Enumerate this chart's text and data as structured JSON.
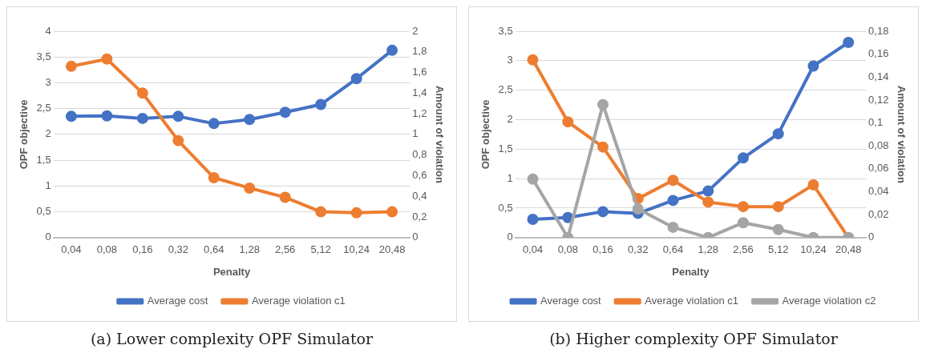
{
  "chart_data": [
    {
      "type": "line",
      "title": "(a) Lower complexity OPF Simulator",
      "xlabel": "Penalty",
      "ylabel": "OPF objective",
      "y2label": "Amount of violation",
      "categories": [
        "0,04",
        "0,08",
        "0,16",
        "0,32",
        "0,64",
        "1,28",
        "2,56",
        "5,12",
        "10,24",
        "20,48"
      ],
      "series": [
        {
          "name": "Average cost",
          "color": "#4472c4",
          "values": [
            2.35,
            2.36,
            2.31,
            2.35,
            2.21,
            2.29,
            2.43,
            2.58,
            3.08,
            3.63
          ]
        },
        {
          "name": "Average violation c1",
          "color": "#ed7d31",
          "axis": "y2",
          "values": [
            1.66,
            1.73,
            1.4,
            0.94,
            0.58,
            0.48,
            0.39,
            0.25,
            0.24,
            0.25
          ]
        }
      ],
      "ylim": [
        0,
        4
      ],
      "yticks": [
        0,
        {
          "value": 0.5,
          "label": "0,5"
        },
        1,
        {
          "value": 1.5,
          "label": "1,5"
        },
        2,
        {
          "value": 2.5,
          "label": "2,5"
        },
        3,
        {
          "value": 3.5,
          "label": "3,5"
        },
        4
      ],
      "y2lim": [
        0,
        2
      ],
      "y2ticks": [
        0,
        {
          "value": 0.2,
          "label": "0,2"
        },
        {
          "value": 0.4,
          "label": "0,4"
        },
        {
          "value": 0.6,
          "label": "0,6"
        },
        {
          "value": 0.8,
          "label": "0,8"
        },
        1,
        {
          "value": 1.2,
          "label": "1,2"
        },
        {
          "value": 1.4,
          "label": "1,4"
        },
        {
          "value": 1.6,
          "label": "1,6"
        },
        {
          "value": 1.8,
          "label": "1,8"
        },
        2
      ],
      "grid": "y",
      "legend": "bottom",
      "marker": "circle",
      "line_style": "solid"
    },
    {
      "type": "line",
      "title": "(b) Higher complexity OPF Simulator",
      "xlabel": "Penalty",
      "ylabel": "OPF objective",
      "y2label": "Amount of violation",
      "categories": [
        "0,04",
        "0,08",
        "0,16",
        "0,32",
        "0,64",
        "1,28",
        "2,56",
        "5,12",
        "10,24",
        "20,48"
      ],
      "series": [
        {
          "name": "Average cost",
          "color": "#4472c4",
          "values": [
            0.31,
            0.34,
            0.44,
            0.41,
            0.63,
            0.79,
            1.35,
            1.76,
            2.91,
            3.31
          ]
        },
        {
          "name": "Average violation c1",
          "color": "#ed7d31",
          "axis": "y2",
          "values": [
            0.155,
            0.101,
            0.079,
            0.034,
            0.05,
            0.031,
            0.027,
            0.027,
            0.046,
            0
          ]
        },
        {
          "name": "Average violation c2",
          "color": "#a5a5a5",
          "axis": "y2",
          "values": [
            0.051,
            0,
            0.116,
            0.025,
            0.009,
            0,
            0.013,
            0.007,
            0,
            0
          ]
        }
      ],
      "ylim": [
        0,
        3.5
      ],
      "yticks": [
        0,
        {
          "value": 0.5,
          "label": "0,5"
        },
        1,
        {
          "value": 1.5,
          "label": "1,5"
        },
        2,
        {
          "value": 2.5,
          "label": "2,5"
        },
        3,
        {
          "value": 3.5,
          "label": "3,5"
        }
      ],
      "y2lim": [
        0,
        0.18
      ],
      "y2ticks": [
        0,
        {
          "value": 0.02,
          "label": "0,02"
        },
        {
          "value": 0.04,
          "label": "0,04"
        },
        {
          "value": 0.06,
          "label": "0,06"
        },
        {
          "value": 0.08,
          "label": "0,08"
        },
        {
          "value": 0.1,
          "label": "0,1"
        },
        {
          "value": 0.12,
          "label": "0,12"
        },
        {
          "value": 0.14,
          "label": "0,14"
        },
        {
          "value": 0.16,
          "label": "0,16"
        },
        {
          "value": 0.18,
          "label": "0,18"
        }
      ],
      "grid": "y",
      "legend": "bottom",
      "marker": "circle",
      "line_style": "solid"
    }
  ]
}
